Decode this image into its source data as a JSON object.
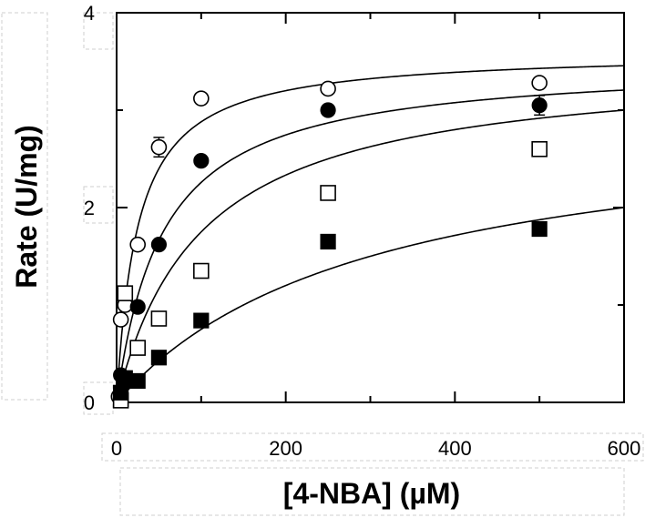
{
  "chart_data": {
    "type": "scatter",
    "xlabel": "[4-NBA] (µM)",
    "ylabel": "Rate (U/mg)",
    "xlim": [
      0,
      600
    ],
    "ylim": [
      0,
      4
    ],
    "x_ticks": [
      0,
      200,
      400,
      600
    ],
    "y_ticks": [
      0,
      2,
      4
    ],
    "x_minor_ticks": [
      100,
      300,
      500
    ],
    "y_minor_ticks": [
      1,
      3
    ],
    "grid": false,
    "series": [
      {
        "marker": "open-circle",
        "x": [
          2.5,
          5,
          10,
          25,
          50,
          100,
          250,
          500
        ],
        "y": [
          0.06,
          0.85,
          1.0,
          1.62,
          2.62,
          3.12,
          3.22,
          3.28
        ],
        "error": [
          0,
          0,
          0,
          0,
          0.1,
          0,
          0,
          0
        ],
        "fit": {
          "vmax": 3.6,
          "k": 25,
          "n": 1
        }
      },
      {
        "marker": "filled-circle",
        "x": [
          5,
          10,
          25,
          50,
          100,
          250,
          500
        ],
        "y": [
          0.28,
          0.2,
          0.98,
          1.62,
          2.48,
          3.0,
          3.05
        ],
        "error": [
          0,
          0,
          0,
          0,
          0.05,
          0,
          0.1
        ],
        "fit": {
          "vmax": 3.5,
          "k": 55,
          "n": 1
        }
      },
      {
        "marker": "open-square",
        "x": [
          5,
          10,
          25,
          50,
          100,
          250,
          500
        ],
        "y": [
          0.02,
          1.12,
          0.56,
          0.86,
          1.35,
          2.15,
          2.6
        ],
        "error": [
          0,
          0,
          0,
          0,
          0,
          0,
          0
        ],
        "fit": {
          "vmax": 3.5,
          "k": 100,
          "n": 1
        }
      },
      {
        "marker": "filled-square",
        "x": [
          5,
          10,
          25,
          50,
          100,
          250,
          500
        ],
        "y": [
          0.1,
          0.25,
          0.22,
          0.46,
          0.84,
          1.65,
          1.78
        ],
        "error": [
          0,
          0,
          0,
          0,
          0,
          0,
          0.05
        ],
        "fit": {
          "vmax": 3.0,
          "k": 300,
          "n": 1
        }
      }
    ]
  }
}
